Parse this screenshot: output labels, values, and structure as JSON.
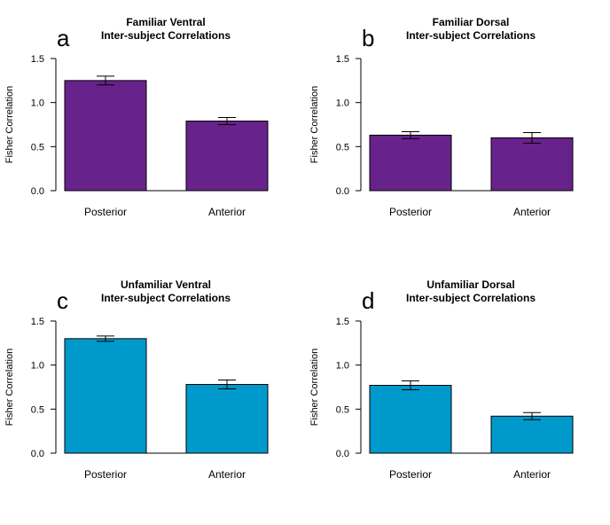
{
  "chart_data": [
    {
      "type": "bar",
      "panel_letter": "a",
      "title": [
        "Familiar Ventral",
        "Inter-subject Correlations"
      ],
      "ylabel": "Fisher Correlation",
      "xlabel": "",
      "categories": [
        "Posterior",
        "Anterior"
      ],
      "values": [
        1.25,
        0.79
      ],
      "errors": [
        0.05,
        0.04
      ],
      "ylim": [
        0,
        1.5
      ],
      "yticks": [
        "0.0",
        "0.5",
        "1.0",
        "1.5"
      ],
      "color": "#68228b"
    },
    {
      "type": "bar",
      "panel_letter": "b",
      "title": [
        "Familiar Dorsal",
        "Inter-subject Correlations"
      ],
      "ylabel": "Fisher Correlation",
      "xlabel": "",
      "categories": [
        "Posterior",
        "Anterior"
      ],
      "values": [
        0.63,
        0.6
      ],
      "errors": [
        0.04,
        0.06
      ],
      "ylim": [
        0,
        1.5
      ],
      "yticks": [
        "0.0",
        "0.5",
        "1.0",
        "1.5"
      ],
      "color": "#68228b"
    },
    {
      "type": "bar",
      "panel_letter": "c",
      "title": [
        "Unfamiliar Ventral",
        "Inter-subject Correlations"
      ],
      "ylabel": "Fisher Correlation",
      "xlabel": "",
      "categories": [
        "Posterior",
        "Anterior"
      ],
      "values": [
        1.3,
        0.78
      ],
      "errors": [
        0.03,
        0.05
      ],
      "ylim": [
        0,
        1.5
      ],
      "yticks": [
        "0.0",
        "0.5",
        "1.0",
        "1.5"
      ],
      "color": "#0099cc"
    },
    {
      "type": "bar",
      "panel_letter": "d",
      "title": [
        "Unfamiliar Dorsal",
        "Inter-subject Correlations"
      ],
      "ylabel": "Fisher Correlation",
      "xlabel": "",
      "categories": [
        "Posterior",
        "Anterior"
      ],
      "values": [
        0.77,
        0.42
      ],
      "errors": [
        0.05,
        0.04
      ],
      "ylim": [
        0,
        1.5
      ],
      "yticks": [
        "0.0",
        "0.5",
        "1.0",
        "1.5"
      ],
      "color": "#0099cc"
    }
  ]
}
